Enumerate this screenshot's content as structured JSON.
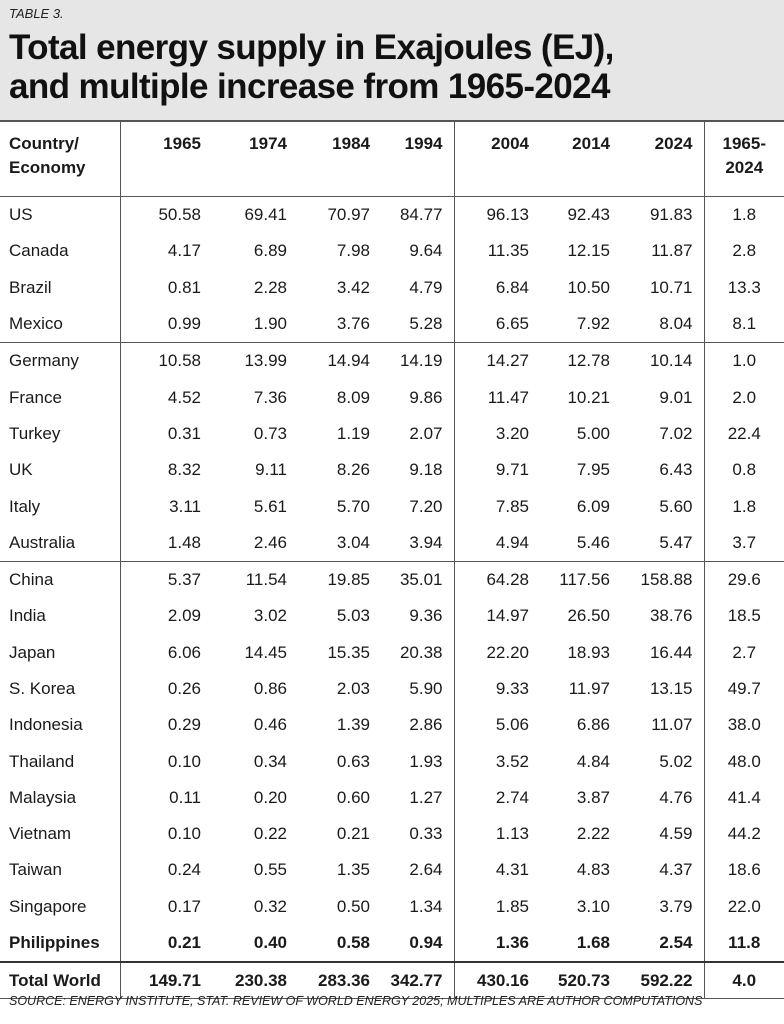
{
  "table_label": "TABLE 3.",
  "title_line1": "Total energy supply in Exajoules (EJ),",
  "title_line2": "and multiple increase from 1965-2024",
  "headers": {
    "country_line1": "Country/",
    "country_line2": "Economy",
    "years": [
      "1965",
      "1974",
      "1984",
      "1994",
      "2004",
      "2014",
      "2024"
    ],
    "multiple_line1": "1965-",
    "multiple_line2": "2024"
  },
  "rows": [
    {
      "country": "US",
      "values": [
        "50.58",
        "69.41",
        "70.97",
        "84.77",
        "96.13",
        "92.43",
        "91.83"
      ],
      "multiple": "1.8"
    },
    {
      "country": "Canada",
      "values": [
        "4.17",
        "6.89",
        "7.98",
        "9.64",
        "11.35",
        "12.15",
        "11.87"
      ],
      "multiple": "2.8"
    },
    {
      "country": "Brazil",
      "values": [
        "0.81",
        "2.28",
        "3.42",
        "4.79",
        "6.84",
        "10.50",
        "10.71"
      ],
      "multiple": "13.3"
    },
    {
      "country": "Mexico",
      "values": [
        "0.99",
        "1.90",
        "3.76",
        "5.28",
        "6.65",
        "7.92",
        "8.04"
      ],
      "multiple": "8.1"
    },
    {
      "country": "Germany",
      "values": [
        "10.58",
        "13.99",
        "14.94",
        "14.19",
        "14.27",
        "12.78",
        "10.14"
      ],
      "multiple": "1.0"
    },
    {
      "country": "France",
      "values": [
        "4.52",
        "7.36",
        "8.09",
        "9.86",
        "11.47",
        "10.21",
        "9.01"
      ],
      "multiple": "2.0"
    },
    {
      "country": "Turkey",
      "values": [
        "0.31",
        "0.73",
        "1.19",
        "2.07",
        "3.20",
        "5.00",
        "7.02"
      ],
      "multiple": "22.4"
    },
    {
      "country": "UK",
      "values": [
        "8.32",
        "9.11",
        "8.26",
        "9.18",
        "9.71",
        "7.95",
        "6.43"
      ],
      "multiple": "0.8"
    },
    {
      "country": "Italy",
      "values": [
        "3.11",
        "5.61",
        "5.70",
        "7.20",
        "7.85",
        "6.09",
        "5.60"
      ],
      "multiple": "1.8"
    },
    {
      "country": "Australia",
      "values": [
        "1.48",
        "2.46",
        "3.04",
        "3.94",
        "4.94",
        "5.46",
        "5.47"
      ],
      "multiple": "3.7"
    },
    {
      "country": "China",
      "values": [
        "5.37",
        "11.54",
        "19.85",
        "35.01",
        "64.28",
        "117.56",
        "158.88"
      ],
      "multiple": "29.6"
    },
    {
      "country": "India",
      "values": [
        "2.09",
        "3.02",
        "5.03",
        "9.36",
        "14.97",
        "26.50",
        "38.76"
      ],
      "multiple": "18.5"
    },
    {
      "country": "Japan",
      "values": [
        "6.06",
        "14.45",
        "15.35",
        "20.38",
        "22.20",
        "18.93",
        "16.44"
      ],
      "multiple": "2.7"
    },
    {
      "country": "S. Korea",
      "values": [
        "0.26",
        "0.86",
        "2.03",
        "5.90",
        "9.33",
        "11.97",
        "13.15"
      ],
      "multiple": "49.7"
    },
    {
      "country": "Indonesia",
      "values": [
        "0.29",
        "0.46",
        "1.39",
        "2.86",
        "5.06",
        "6.86",
        "11.07"
      ],
      "multiple": "38.0"
    },
    {
      "country": "Thailand",
      "values": [
        "0.10",
        "0.34",
        "0.63",
        "1.93",
        "3.52",
        "4.84",
        "5.02"
      ],
      "multiple": "48.0"
    },
    {
      "country": "Malaysia",
      "values": [
        "0.11",
        "0.20",
        "0.60",
        "1.27",
        "2.74",
        "3.87",
        "4.76"
      ],
      "multiple": "41.4"
    },
    {
      "country": "Vietnam",
      "values": [
        "0.10",
        "0.22",
        "0.21",
        "0.33",
        "1.13",
        "2.22",
        "4.59"
      ],
      "multiple": "44.2"
    },
    {
      "country": "Taiwan",
      "values": [
        "0.24",
        "0.55",
        "1.35",
        "2.64",
        "4.31",
        "4.83",
        "4.37"
      ],
      "multiple": "18.6"
    },
    {
      "country": "Singapore",
      "values": [
        "0.17",
        "0.32",
        "0.50",
        "1.34",
        "1.85",
        "3.10",
        "3.79"
      ],
      "multiple": "22.0"
    },
    {
      "country": "Philippines",
      "values": [
        "0.21",
        "0.40",
        "0.58",
        "0.94",
        "1.36",
        "1.68",
        "2.54"
      ],
      "multiple": "11.8",
      "bold": true
    }
  ],
  "total": {
    "country": "Total World",
    "values": [
      "149.71",
      "230.38",
      "283.36",
      "342.77",
      "430.16",
      "520.73",
      "592.22"
    ],
    "multiple": "4.0"
  },
  "source": "SOURCE: ENERGY INSTITUTE, STAT. REVIEW OF WORLD ENERGY 2025; MULTIPLES ARE AUTHOR COMPUTATIONS"
}
